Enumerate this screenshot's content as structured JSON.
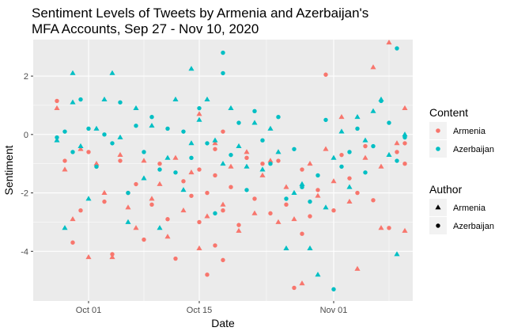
{
  "chart_data": {
    "type": "scatter",
    "title": "Sentiment Levels of Tweets by Armenia and Azerbaijan's",
    "subtitle": "MFA Accounts, Sep 27 - Nov 10, 2020",
    "xlabel": "Date",
    "ylabel": "Sentiment",
    "x_type": "date",
    "xlim": [
      "2020-09-24",
      "2020-11-11"
    ],
    "ylim": [
      -5.7,
      3.25
    ],
    "x_ticks": [
      {
        "value": "2020-10-01",
        "label": "Oct 01"
      },
      {
        "value": "2020-10-15",
        "label": "Oct 15"
      },
      {
        "value": "2020-11-01",
        "label": "Nov 01"
      }
    ],
    "y_ticks": [
      {
        "value": -4,
        "label": "-4"
      },
      {
        "value": -2,
        "label": "-2"
      },
      {
        "value": 0,
        "label": "0"
      },
      {
        "value": 2,
        "label": "2"
      }
    ],
    "grid": true,
    "background": "#ebebeb",
    "legend": {
      "placement": "right",
      "color_title": "Content",
      "color_entries": [
        {
          "label": "Armenia",
          "color": "#F8766D"
        },
        {
          "label": "Azerbaijan",
          "color": "#00BFC4"
        }
      ],
      "shape_title": "Author",
      "shape_entries": [
        {
          "label": "Armenia",
          "shape": "triangle"
        },
        {
          "label": "Azerbaijan",
          "shape": "circle"
        }
      ]
    },
    "series": [
      {
        "content": "Armenia",
        "author": "Armenia",
        "color": "#F8766D",
        "shape": "triangle",
        "points": [
          [
            "2020-09-27",
            0.9
          ],
          [
            "2020-09-28",
            -1.2
          ],
          [
            "2020-09-29",
            -2.9
          ],
          [
            "2020-09-30",
            -0.5
          ],
          [
            "2020-10-01",
            -4.2
          ],
          [
            "2020-10-02",
            -1.0
          ],
          [
            "2020-10-03",
            -2.0
          ],
          [
            "2020-10-04",
            -4.2
          ],
          [
            "2020-10-05",
            -0.7
          ],
          [
            "2020-10-06",
            -2.5
          ],
          [
            "2020-10-07",
            -3.2
          ],
          [
            "2020-10-08",
            -0.9
          ],
          [
            "2020-10-09",
            -2.2
          ],
          [
            "2020-10-10",
            -1.7
          ],
          [
            "2020-10-11",
            -3.5
          ],
          [
            "2020-10-12",
            -0.8
          ],
          [
            "2020-10-13",
            -2.6
          ],
          [
            "2020-10-14",
            -1.3
          ],
          [
            "2020-10-15",
            -3.9
          ],
          [
            "2020-10-15",
            0.7
          ],
          [
            "2020-10-16",
            -2.8
          ],
          [
            "2020-10-17",
            -0.3
          ],
          [
            "2020-10-18",
            -2.4
          ],
          [
            "2020-10-19",
            -1.1
          ],
          [
            "2020-10-20",
            -3.3
          ],
          [
            "2020-10-21",
            -0.6
          ],
          [
            "2020-10-22",
            -2.7
          ],
          [
            "2020-10-23",
            -1.4
          ],
          [
            "2020-10-24",
            -0.9
          ],
          [
            "2020-10-25",
            -3.0
          ],
          [
            "2020-10-26",
            -1.8
          ],
          [
            "2020-10-27",
            -2.9
          ],
          [
            "2020-10-28",
            -5.1
          ],
          [
            "2020-10-29",
            -1.0
          ],
          [
            "2020-10-30",
            -2.1
          ],
          [
            "2020-10-31",
            -0.5
          ],
          [
            "2020-11-01",
            -1.6
          ],
          [
            "2020-11-02",
            0.6
          ],
          [
            "2020-11-03",
            -2.3
          ],
          [
            "2020-11-04",
            -4.6
          ],
          [
            "2020-11-05",
            -0.8
          ],
          [
            "2020-11-06",
            2.3
          ],
          [
            "2020-11-07",
            -1.1
          ],
          [
            "2020-11-07",
            -3.2
          ],
          [
            "2020-11-08",
            3.15
          ],
          [
            "2020-11-09",
            -0.3
          ],
          [
            "2020-11-10",
            -3.3
          ],
          [
            "2020-11-10",
            0.9
          ]
        ]
      },
      {
        "content": "Armenia",
        "author": "Azerbaijan",
        "color": "#F8766D",
        "shape": "circle",
        "points": [
          [
            "2020-09-27",
            1.15
          ],
          [
            "2020-09-28",
            -0.9
          ],
          [
            "2020-09-29",
            -3.7
          ],
          [
            "2020-09-30",
            -2.6
          ],
          [
            "2020-10-01",
            -0.6
          ],
          [
            "2020-10-02",
            -1.1
          ],
          [
            "2020-10-03",
            -2.3
          ],
          [
            "2020-10-04",
            -4.1
          ],
          [
            "2020-10-05",
            -0.9
          ],
          [
            "2020-10-06",
            -2.0
          ],
          [
            "2020-10-07",
            -1.7
          ],
          [
            "2020-10-08",
            -3.6
          ],
          [
            "2020-10-09",
            -2.4
          ],
          [
            "2020-10-10",
            -1.0
          ],
          [
            "2020-10-11",
            -2.9
          ],
          [
            "2020-10-12",
            -4.25
          ],
          [
            "2020-10-13",
            -1.6
          ],
          [
            "2020-10-14",
            -2.1
          ],
          [
            "2020-10-15",
            -3.0
          ],
          [
            "2020-10-15",
            -1.2
          ],
          [
            "2020-10-16",
            -4.8
          ],
          [
            "2020-10-16",
            -2.0
          ],
          [
            "2020-10-17",
            -3.8
          ],
          [
            "2020-10-17",
            -0.5
          ],
          [
            "2020-10-17",
            -1.4
          ],
          [
            "2020-10-18",
            -4.3
          ],
          [
            "2020-10-18",
            -2.6
          ],
          [
            "2020-10-18",
            0.1
          ],
          [
            "2020-10-19",
            -1.8
          ],
          [
            "2020-10-20",
            -3.1
          ],
          [
            "2020-10-21",
            -0.8
          ],
          [
            "2020-10-22",
            -2.2
          ],
          [
            "2020-10-23",
            -1.0
          ],
          [
            "2020-10-24",
            -2.7
          ],
          [
            "2020-10-25",
            -0.9
          ],
          [
            "2020-10-26",
            -2.4
          ],
          [
            "2020-10-27",
            -5.25
          ],
          [
            "2020-10-28",
            -3.4
          ],
          [
            "2020-10-28",
            -1.2
          ],
          [
            "2020-10-29",
            -2.8
          ],
          [
            "2020-10-30",
            -1.9
          ],
          [
            "2020-10-31",
            2.05
          ],
          [
            "2020-11-01",
            -2.6
          ],
          [
            "2020-11-02",
            -0.7
          ],
          [
            "2020-11-03",
            -1.5
          ],
          [
            "2020-11-04",
            -2.0
          ],
          [
            "2020-11-05",
            -0.4
          ],
          [
            "2020-11-06",
            -2.25
          ],
          [
            "2020-11-08",
            -3.2
          ],
          [
            "2020-11-09",
            -0.6
          ],
          [
            "2020-11-10",
            -1.0
          ],
          [
            "2020-11-10",
            -0.3
          ]
        ]
      },
      {
        "content": "Azerbaijan",
        "author": "Armenia",
        "color": "#00BFC4",
        "shape": "triangle",
        "points": [
          [
            "2020-09-27",
            -0.2
          ],
          [
            "2020-09-28",
            -3.2
          ],
          [
            "2020-09-29",
            1.1
          ],
          [
            "2020-09-29",
            2.1
          ],
          [
            "2020-09-30",
            -0.4
          ],
          [
            "2020-10-01",
            -2.2
          ],
          [
            "2020-10-02",
            0.2
          ],
          [
            "2020-10-03",
            1.2
          ],
          [
            "2020-10-04",
            2.1
          ],
          [
            "2020-10-05",
            -0.1
          ],
          [
            "2020-10-06",
            -3.0
          ],
          [
            "2020-10-07",
            0.9
          ],
          [
            "2020-10-08",
            -1.5
          ],
          [
            "2020-10-09",
            0.3
          ],
          [
            "2020-10-10",
            -3.2
          ],
          [
            "2020-10-11",
            -0.8
          ],
          [
            "2020-10-12",
            1.2
          ],
          [
            "2020-10-13",
            -1.9
          ],
          [
            "2020-10-14",
            2.25
          ],
          [
            "2020-10-14",
            -0.3
          ],
          [
            "2020-10-15",
            0.5
          ],
          [
            "2020-10-16",
            1.2
          ],
          [
            "2020-10-17",
            -0.2
          ],
          [
            "2020-10-18",
            -1.0
          ],
          [
            "2020-10-19",
            0.9
          ],
          [
            "2020-10-20",
            -0.4
          ],
          [
            "2020-10-21",
            -1.1
          ],
          [
            "2020-10-22",
            0.4
          ],
          [
            "2020-10-23",
            -1.2
          ],
          [
            "2020-10-24",
            0.2
          ],
          [
            "2020-10-25",
            -0.6
          ],
          [
            "2020-10-26",
            -3.9
          ],
          [
            "2020-10-27",
            -2.0
          ],
          [
            "2020-10-28",
            -1.7
          ],
          [
            "2020-10-29",
            -3.9
          ],
          [
            "2020-10-30",
            -4.8
          ],
          [
            "2020-10-31",
            -2.5
          ],
          [
            "2020-11-01",
            -0.8
          ],
          [
            "2020-11-02",
            0.1
          ],
          [
            "2020-11-03",
            -1.8
          ],
          [
            "2020-11-04",
            0.6
          ],
          [
            "2020-11-05",
            -0.2
          ],
          [
            "2020-11-06",
            0.8
          ],
          [
            "2020-11-07",
            1.2
          ],
          [
            "2020-11-08",
            -0.7
          ],
          [
            "2020-11-09",
            -4.1
          ],
          [
            "2020-11-10",
            0.0
          ]
        ]
      },
      {
        "content": "Azerbaijan",
        "author": "Azerbaijan",
        "color": "#00BFC4",
        "shape": "circle",
        "points": [
          [
            "2020-09-27",
            -0.1
          ],
          [
            "2020-09-28",
            0.1
          ],
          [
            "2020-09-29",
            -0.6
          ],
          [
            "2020-09-30",
            1.2
          ],
          [
            "2020-10-01",
            0.2
          ],
          [
            "2020-10-02",
            -1.1
          ],
          [
            "2020-10-03",
            0.0
          ],
          [
            "2020-10-04",
            -0.3
          ],
          [
            "2020-10-05",
            1.1
          ],
          [
            "2020-10-06",
            -2.0
          ],
          [
            "2020-10-07",
            0.3
          ],
          [
            "2020-10-08",
            -0.6
          ],
          [
            "2020-10-09",
            0.6
          ],
          [
            "2020-10-10",
            -1.2
          ],
          [
            "2020-10-11",
            0.2
          ],
          [
            "2020-10-12",
            -1.3
          ],
          [
            "2020-10-13",
            0.1
          ],
          [
            "2020-10-14",
            -0.8
          ],
          [
            "2020-10-15",
            0.9
          ],
          [
            "2020-10-16",
            -0.3
          ],
          [
            "2020-10-17",
            -2.7
          ],
          [
            "2020-10-18",
            2.8
          ],
          [
            "2020-10-18",
            2.1
          ],
          [
            "2020-10-19",
            -0.7
          ],
          [
            "2020-10-20",
            0.4
          ],
          [
            "2020-10-21",
            -1.9
          ],
          [
            "2020-10-22",
            0.8
          ],
          [
            "2020-10-23",
            -0.2
          ],
          [
            "2020-10-24",
            -1.0
          ],
          [
            "2020-10-25",
            0.6
          ],
          [
            "2020-10-26",
            -2.2
          ],
          [
            "2020-10-27",
            -0.5
          ],
          [
            "2020-10-28",
            -1.8
          ],
          [
            "2020-10-29",
            -2.3
          ],
          [
            "2020-10-30",
            -1.4
          ],
          [
            "2020-10-31",
            0.5
          ],
          [
            "2020-11-01",
            -5.3
          ],
          [
            "2020-11-02",
            -1.1
          ],
          [
            "2020-11-03",
            -0.6
          ],
          [
            "2020-11-04",
            0.2
          ],
          [
            "2020-11-05",
            -1.3
          ],
          [
            "2020-11-06",
            -0.4
          ],
          [
            "2020-11-07",
            1.15
          ],
          [
            "2020-11-08",
            0.4
          ],
          [
            "2020-11-09",
            2.95
          ],
          [
            "2020-11-09",
            -0.9
          ],
          [
            "2020-11-10",
            -0.1
          ]
        ]
      }
    ]
  }
}
